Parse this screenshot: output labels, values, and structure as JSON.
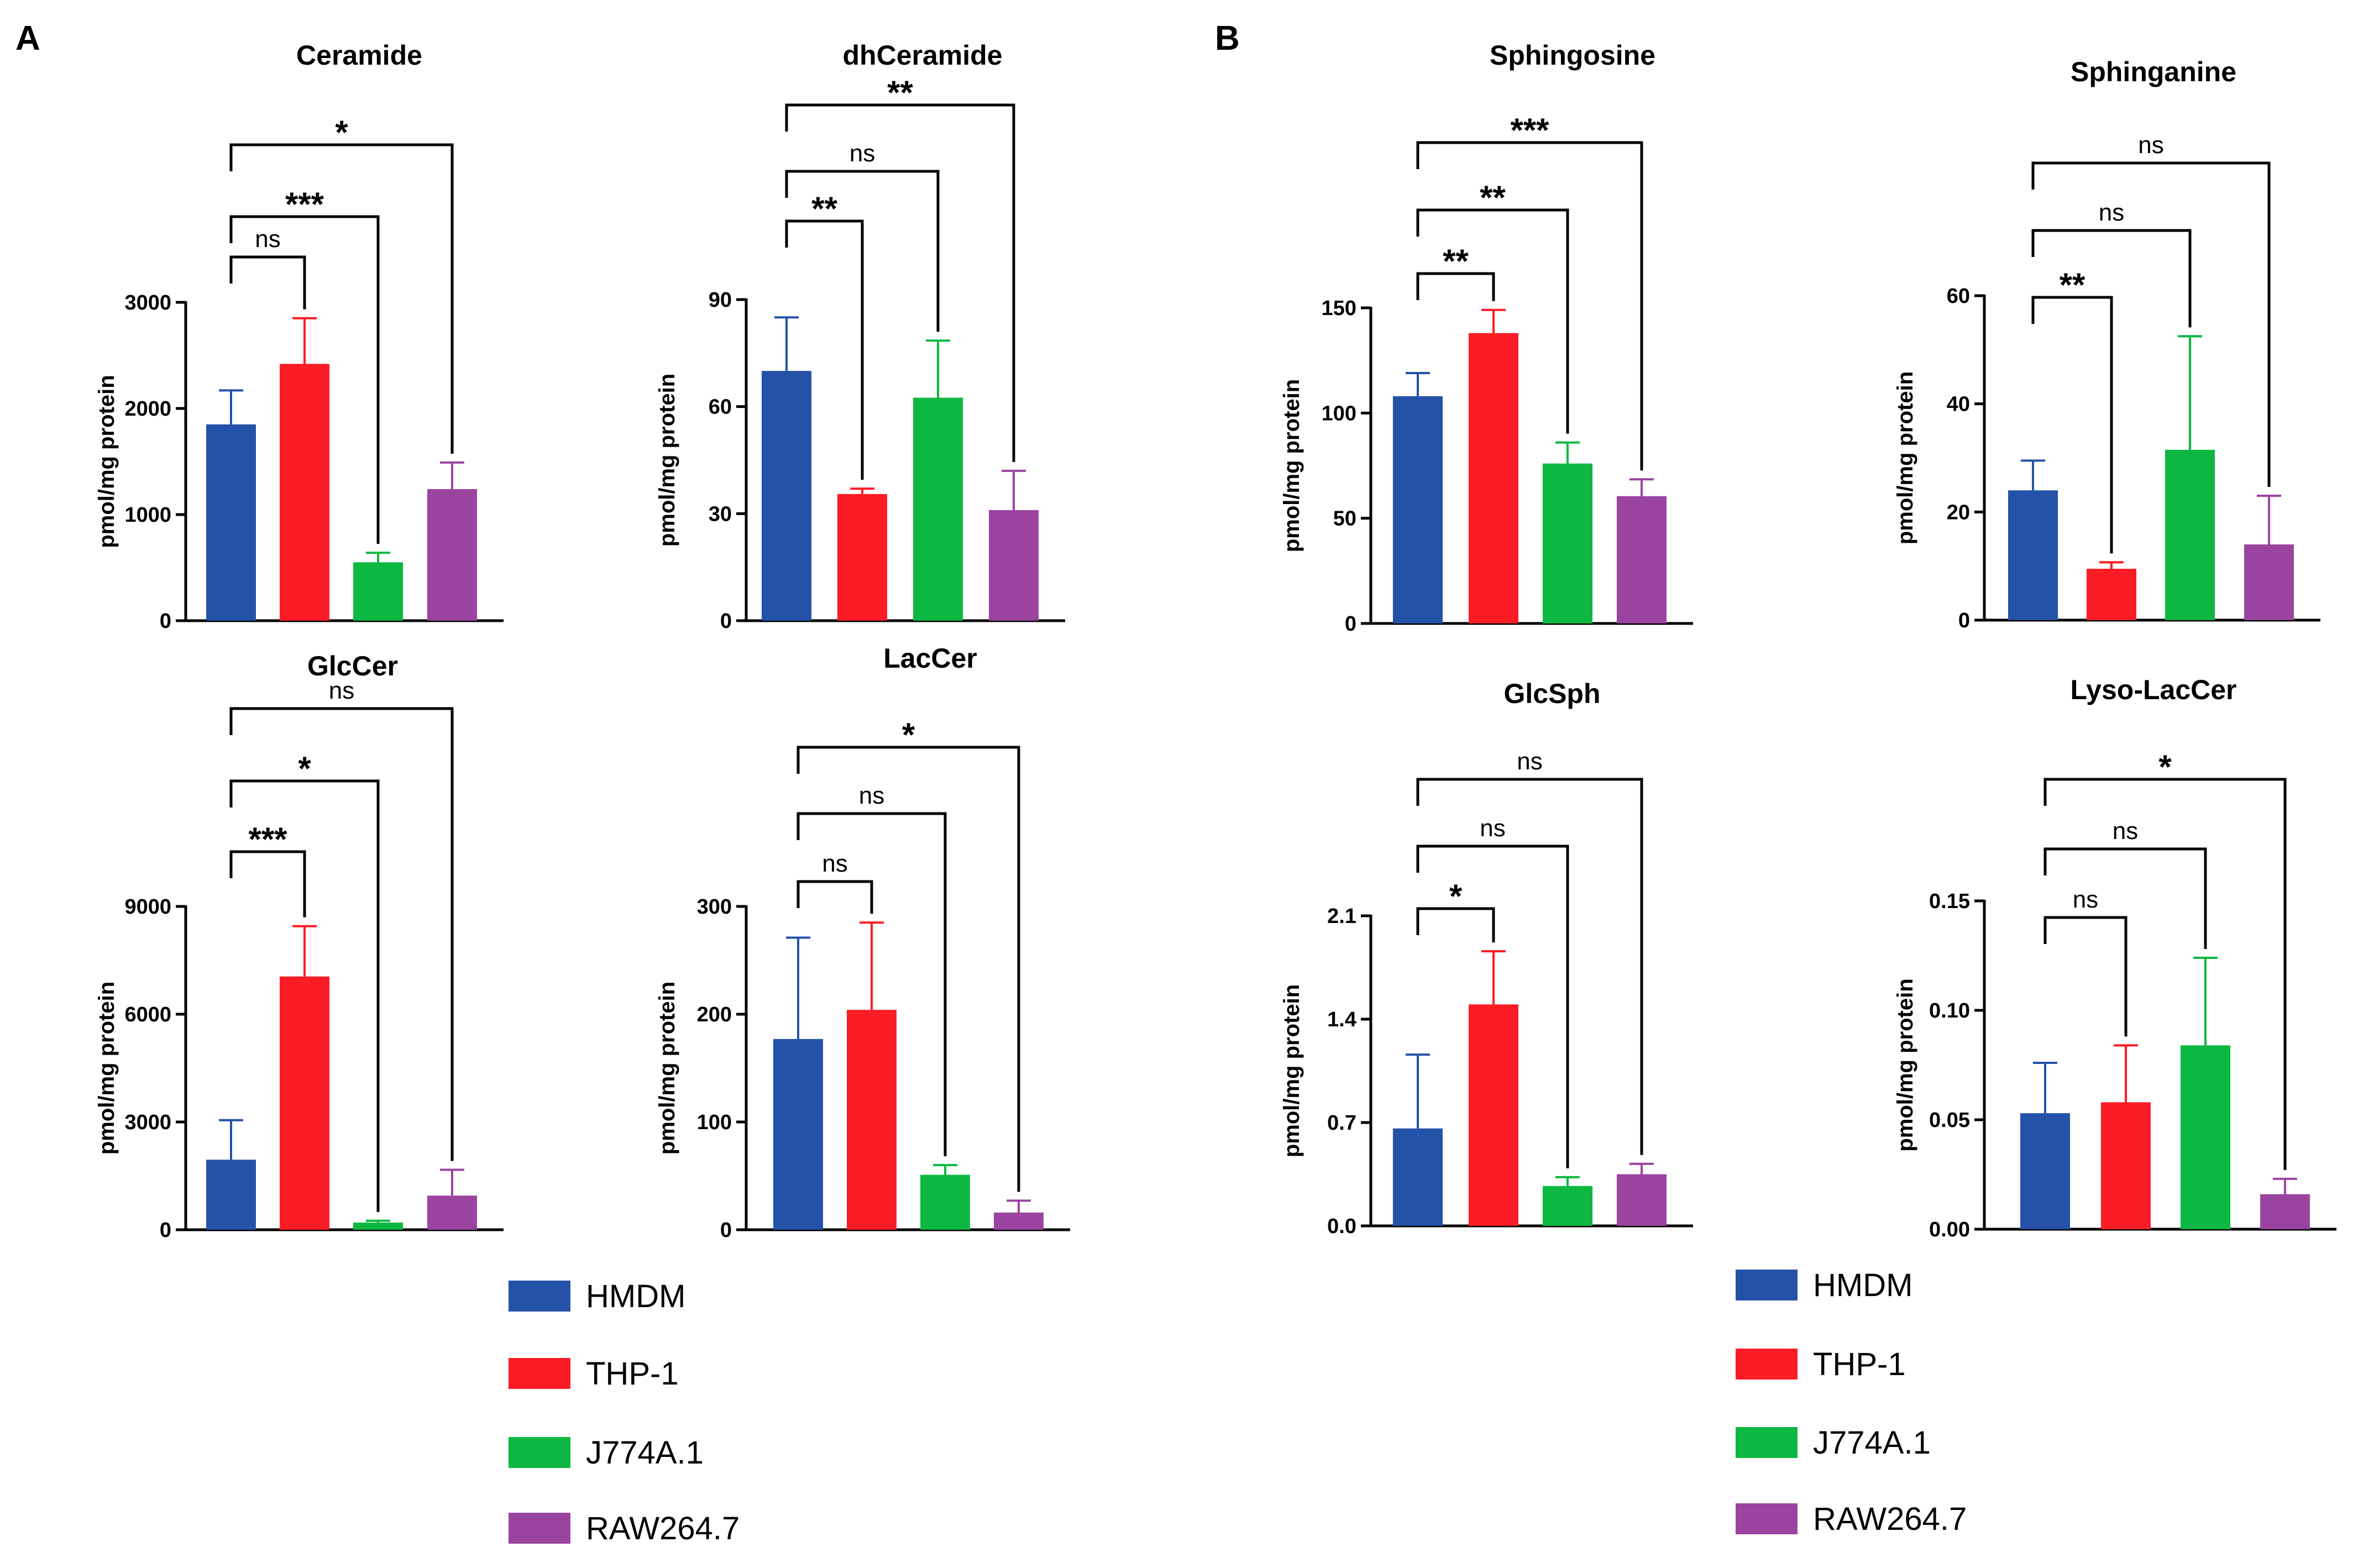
{
  "figure": {
    "panels": [
      {
        "letter": "A"
      },
      {
        "letter": "B"
      }
    ]
  },
  "colors": {
    "HMDM": "#2452a8",
    "THP-1": "#fb1c25",
    "J774A.1": "#0cb841",
    "RAW264.7": "#9a44a0",
    "axis": "#000000"
  },
  "legends": [
    {
      "entries": [
        "HMDM",
        "THP-1",
        "J774A.1",
        "RAW264.7"
      ]
    },
    {
      "entries": [
        "HMDM",
        "THP-1",
        "J774A.1",
        "RAW264.7"
      ]
    }
  ],
  "chart_data": [
    {
      "type": "bar",
      "panel": "A",
      "title": "Ceramide",
      "categories": [
        "HMDM",
        "THP-1",
        "J774A.1",
        "RAW264.7"
      ],
      "values": [
        1850,
        2420,
        550,
        1240
      ],
      "errors": [
        320,
        430,
        90,
        250
      ],
      "ylabel": "pmol/mg protein",
      "ylim": [
        0,
        3000
      ],
      "yticks": [
        "0",
        "1000",
        "2000",
        "3000"
      ],
      "comparisons": [
        {
          "from": "HMDM",
          "to": "THP-1",
          "label": "ns"
        },
        {
          "from": "HMDM",
          "to": "J774A.1",
          "label": "***"
        },
        {
          "from": "HMDM",
          "to": "RAW264.7",
          "label": "*"
        }
      ]
    },
    {
      "type": "bar",
      "panel": "A",
      "title": "dhCeramide",
      "categories": [
        "HMDM",
        "THP-1",
        "J774A.1",
        "RAW264.7"
      ],
      "values": [
        70,
        35.5,
        62.5,
        31
      ],
      "errors": [
        15,
        1.5,
        16,
        11
      ],
      "ylabel": "pmol/mg protein",
      "ylim": [
        0,
        90
      ],
      "yticks": [
        "0",
        "30",
        "60",
        "90"
      ],
      "comparisons": [
        {
          "from": "HMDM",
          "to": "THP-1",
          "label": "**"
        },
        {
          "from": "HMDM",
          "to": "J774A.1",
          "label": "ns"
        },
        {
          "from": "HMDM",
          "to": "RAW264.7",
          "label": "**"
        }
      ]
    },
    {
      "type": "bar",
      "panel": "A",
      "title": "GlcCer",
      "categories": [
        "HMDM",
        "THP-1",
        "J774A.1",
        "RAW264.7"
      ],
      "values": [
        1950,
        7050,
        200,
        950
      ],
      "errors": [
        1100,
        1400,
        50,
        720
      ],
      "ylabel": "pmol/mg protein",
      "ylim": [
        0,
        9000
      ],
      "yticks": [
        "0",
        "3000",
        "6000",
        "9000"
      ],
      "comparisons": [
        {
          "from": "HMDM",
          "to": "THP-1",
          "label": "***"
        },
        {
          "from": "HMDM",
          "to": "J774A.1",
          "label": "*"
        },
        {
          "from": "HMDM",
          "to": "RAW264.7",
          "label": "ns"
        }
      ]
    },
    {
      "type": "bar",
      "panel": "A",
      "title": "LacCer",
      "categories": [
        "HMDM",
        "THP-1",
        "J774A.1",
        "RAW264.7"
      ],
      "values": [
        177,
        204,
        51,
        16
      ],
      "errors": [
        94,
        81,
        9,
        11
      ],
      "ylabel": "pmol/mg protein",
      "ylim": [
        0,
        300
      ],
      "yticks": [
        "0",
        "100",
        "200",
        "300"
      ],
      "comparisons": [
        {
          "from": "HMDM",
          "to": "THP-1",
          "label": "ns"
        },
        {
          "from": "HMDM",
          "to": "J774A.1",
          "label": "ns"
        },
        {
          "from": "HMDM",
          "to": "RAW264.7",
          "label": "*"
        }
      ]
    },
    {
      "type": "bar",
      "panel": "B",
      "title": "Sphingosine",
      "categories": [
        "HMDM",
        "THP-1",
        "J774A.1",
        "RAW264.7"
      ],
      "values": [
        108,
        138,
        76,
        60.5
      ],
      "errors": [
        11,
        11,
        10,
        8
      ],
      "ylabel": "pmol/mg protein",
      "ylim": [
        0,
        150
      ],
      "yticks": [
        "0",
        "50",
        "100",
        "150"
      ],
      "comparisons": [
        {
          "from": "HMDM",
          "to": "THP-1",
          "label": "**"
        },
        {
          "from": "HMDM",
          "to": "J774A.1",
          "label": "**"
        },
        {
          "from": "HMDM",
          "to": "RAW264.7",
          "label": "***"
        }
      ]
    },
    {
      "type": "bar",
      "panel": "B",
      "title": "Sphinganine",
      "categories": [
        "HMDM",
        "THP-1",
        "J774A.1",
        "RAW264.7"
      ],
      "values": [
        24,
        9.5,
        31.5,
        14
      ],
      "errors": [
        5.5,
        1.2,
        21,
        9
      ],
      "ylabel": "pmol/mg protein",
      "ylim": [
        0,
        60
      ],
      "yticks": [
        "0",
        "20",
        "40",
        "60"
      ],
      "comparisons": [
        {
          "from": "HMDM",
          "to": "THP-1",
          "label": "**"
        },
        {
          "from": "HMDM",
          "to": "J774A.1",
          "label": "ns"
        },
        {
          "from": "HMDM",
          "to": "RAW264.7",
          "label": "ns"
        }
      ]
    },
    {
      "type": "bar",
      "panel": "B",
      "title": "GlcSph",
      "categories": [
        "HMDM",
        "THP-1",
        "J774A.1",
        "RAW264.7"
      ],
      "values": [
        0.66,
        1.5,
        0.27,
        0.35
      ],
      "errors": [
        0.5,
        0.36,
        0.06,
        0.07
      ],
      "ylabel": "pmol/mg protein",
      "ylim": [
        0,
        2.1
      ],
      "yticks": [
        "0.0",
        "0.7",
        "1.4",
        "2.1"
      ],
      "comparisons": [
        {
          "from": "HMDM",
          "to": "THP-1",
          "label": "*"
        },
        {
          "from": "HMDM",
          "to": "J774A.1",
          "label": "ns"
        },
        {
          "from": "HMDM",
          "to": "RAW264.7",
          "label": "ns"
        }
      ]
    },
    {
      "type": "bar",
      "panel": "B",
      "title": "Lyso-LacCer",
      "categories": [
        "HMDM",
        "THP-1",
        "J774A.1",
        "RAW264.7"
      ],
      "values": [
        0.053,
        0.058,
        0.084,
        0.016
      ],
      "errors": [
        0.023,
        0.026,
        0.04,
        0.007
      ],
      "ylabel": "pmol/mg protein",
      "ylim": [
        0,
        0.15
      ],
      "yticks": [
        "0.00",
        "0.05",
        "0.10",
        "0.15"
      ],
      "comparisons": [
        {
          "from": "HMDM",
          "to": "THP-1",
          "label": "ns"
        },
        {
          "from": "HMDM",
          "to": "J774A.1",
          "label": "ns"
        },
        {
          "from": "HMDM",
          "to": "RAW264.7",
          "label": "*"
        }
      ]
    }
  ]
}
